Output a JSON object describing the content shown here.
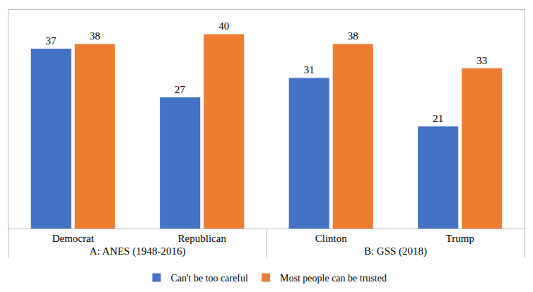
{
  "chart_data": {
    "type": "bar",
    "categories": [
      "Democrat",
      "Republican",
      "Clinton",
      "Trump"
    ],
    "category_groups": [
      {
        "label": "A: ANES (1948-2016)",
        "categories": [
          "Democrat",
          "Republican"
        ]
      },
      {
        "label": "B: GSS (2018)",
        "categories": [
          "Clinton",
          "Trump"
        ]
      }
    ],
    "series": [
      {
        "name": "Can't be too careful",
        "color": "#4472c4",
        "values": [
          37,
          27,
          31,
          21
        ]
      },
      {
        "name": "Most people can be trusted",
        "color": "#ed7d31",
        "values": [
          38,
          40,
          38,
          33
        ]
      }
    ],
    "ylim": [
      0,
      45
    ],
    "yticks": [],
    "data_labels": true,
    "tick_labels": "x",
    "legend": "bottom",
    "grid": false
  }
}
